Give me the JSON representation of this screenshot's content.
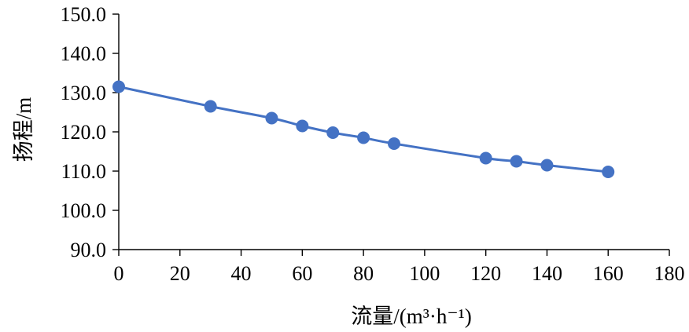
{
  "chart_data": {
    "type": "scatter",
    "xlabel": "流量/(m³·h⁻¹)",
    "ylabel": "扬程/m",
    "xlim": [
      0,
      180
    ],
    "ylim": [
      90,
      150
    ],
    "x_ticks": [
      0,
      20,
      40,
      60,
      80,
      100,
      120,
      140,
      160,
      180
    ],
    "y_ticks": [
      "90.0",
      "100.0",
      "110.0",
      "120.0",
      "130.0",
      "140.0",
      "150.0"
    ],
    "grid": false,
    "series": [
      {
        "color": "#4472c4",
        "smooth_line": true,
        "x": [
          0,
          30,
          50,
          60,
          70,
          80,
          90,
          120,
          130,
          140,
          160
        ],
        "y": [
          131.5,
          126.5,
          123.5,
          121.5,
          119.8,
          118.5,
          117.0,
          113.3,
          112.5,
          111.5,
          109.8
        ]
      }
    ]
  }
}
